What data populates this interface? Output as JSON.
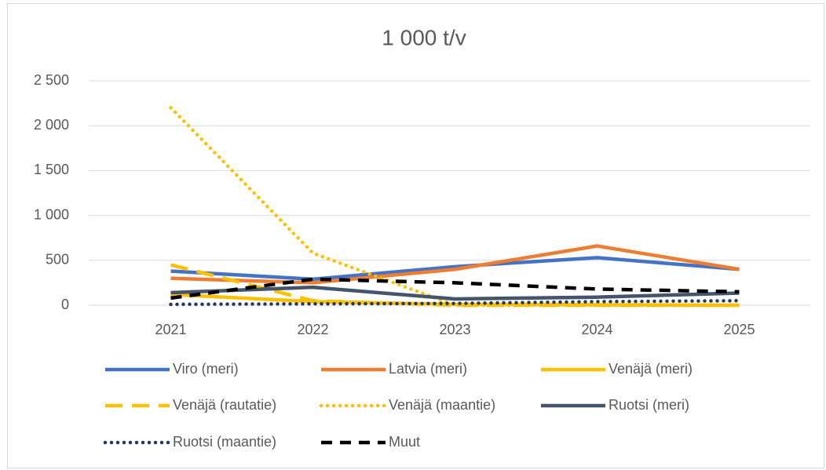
{
  "chart_data": {
    "type": "line",
    "title": "1 000 t/v",
    "categories": [
      "2021",
      "2022",
      "2023",
      "2024",
      "2025"
    ],
    "ylim": [
      0,
      2500
    ],
    "yticks": [
      0,
      500,
      {
        "value": 1000,
        "label": "1 000"
      },
      {
        "value": 1500,
        "label": "1 500"
      },
      {
        "value": 2000,
        "label": "2 000"
      },
      {
        "value": 2500,
        "label": "2 500"
      }
    ],
    "grid": true,
    "legend": "bottom",
    "series": [
      {
        "name": "Viro (meri)",
        "color": "#4472c4",
        "dash": "solid",
        "values": [
          380,
          290,
          430,
          530,
          400
        ]
      },
      {
        "name": "Latvia (meri)",
        "color": "#ed7d31",
        "dash": "solid",
        "values": [
          300,
          250,
          400,
          660,
          400
        ]
      },
      {
        "name": "Venäjä (meri)",
        "color": "#ffc000",
        "dash": "solid",
        "values": [
          120,
          40,
          10,
          5,
          0
        ]
      },
      {
        "name": "Venäjä (rautatie)",
        "color": "#ffc000",
        "dash": "longdash",
        "values": [
          450,
          50,
          0,
          0,
          0
        ]
      },
      {
        "name": "Venäjä (maantie)",
        "color": "#ffc000",
        "dash": "dotted",
        "values": [
          2200,
          580,
          0,
          0,
          0
        ]
      },
      {
        "name": "Ruotsi (meri)",
        "color": "#44546a",
        "dash": "solid",
        "values": [
          140,
          200,
          70,
          90,
          135
        ]
      },
      {
        "name": "Ruotsi (maantie)",
        "color": "#203864",
        "dash": "dotted",
        "values": [
          10,
          15,
          20,
          40,
          50
        ]
      },
      {
        "name": "Muut",
        "color": "#000000",
        "dash": "dashed",
        "values": [
          80,
          290,
          250,
          180,
          150
        ]
      }
    ]
  }
}
